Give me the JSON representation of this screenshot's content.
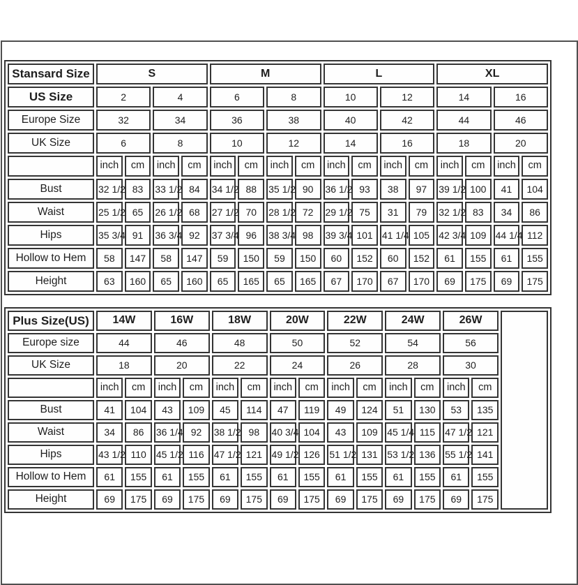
{
  "colors": {
    "page_background": "#ffffff",
    "outer_border": "#4f4f4f",
    "table_border": "#343434",
    "text": "#1e1e1e"
  },
  "chart_data": [
    {
      "type": "table",
      "title_label": "Stansard Size",
      "size_groups": [
        "S",
        "M",
        "L",
        "XL"
      ],
      "layout": {
        "group_colspan": 4,
        "header_colspan": 2,
        "trailing_empty_col": false,
        "legend_position": "none",
        "grid": "on"
      },
      "header_rows": [
        {
          "label": "US Size",
          "bold": true,
          "values": [
            "2",
            "4",
            "6",
            "8",
            "10",
            "12",
            "14",
            "16"
          ]
        },
        {
          "label": "Europe Size",
          "bold": false,
          "values": [
            "32",
            "34",
            "36",
            "38",
            "40",
            "42",
            "44",
            "46"
          ]
        },
        {
          "label": "UK Size",
          "bold": false,
          "values": [
            "6",
            "8",
            "10",
            "12",
            "14",
            "16",
            "18",
            "20"
          ]
        }
      ],
      "unit_labels": [
        "inch",
        "cm"
      ],
      "measurement_rows": [
        {
          "label": "Bust",
          "values": [
            "32 1/2",
            "83",
            "33 1/2",
            "84",
            "34 1/2",
            "88",
            "35 1/2",
            "90",
            "36 1/2",
            "93",
            "38",
            "97",
            "39 1/2",
            "100",
            "41",
            "104"
          ]
        },
        {
          "label": "Waist",
          "values": [
            "25 1/2",
            "65",
            "26 1/2",
            "68",
            "27 1/2",
            "70",
            "28 1/2",
            "72",
            "29 1/2",
            "75",
            "31",
            "79",
            "32 1/2",
            "83",
            "34",
            "86"
          ]
        },
        {
          "label": "Hips",
          "values": [
            "35 3/4",
            "91",
            "36 3/4",
            "92",
            "37 3/4",
            "96",
            "38 3/4",
            "98",
            "39 3/4",
            "101",
            "41 1/4",
            "105",
            "42 3/4",
            "109",
            "44 1/4",
            "112"
          ]
        },
        {
          "label": "Hollow to Hem",
          "values": [
            "58",
            "147",
            "58",
            "147",
            "59",
            "150",
            "59",
            "150",
            "60",
            "152",
            "60",
            "152",
            "61",
            "155",
            "61",
            "155"
          ]
        },
        {
          "label": "Height",
          "values": [
            "63",
            "160",
            "65",
            "160",
            "65",
            "165",
            "65",
            "165",
            "67",
            "170",
            "67",
            "170",
            "69",
            "175",
            "69",
            "175"
          ]
        }
      ]
    },
    {
      "type": "table",
      "title_label": "Plus Size(US)",
      "size_groups": [
        "14W",
        "16W",
        "18W",
        "20W",
        "22W",
        "24W",
        "26W"
      ],
      "layout": {
        "group_colspan": 2,
        "header_colspan": 2,
        "trailing_empty_col": true,
        "legend_position": "none",
        "grid": "on"
      },
      "header_rows": [
        {
          "label": "Europe size",
          "bold": false,
          "values": [
            "44",
            "46",
            "48",
            "50",
            "52",
            "54",
            "56"
          ]
        },
        {
          "label": "UK Size",
          "bold": false,
          "values": [
            "18",
            "20",
            "22",
            "24",
            "26",
            "28",
            "30"
          ]
        }
      ],
      "unit_labels": [
        "inch",
        "cm"
      ],
      "measurement_rows": [
        {
          "label": "Bust",
          "values": [
            "41",
            "104",
            "43",
            "109",
            "45",
            "114",
            "47",
            "119",
            "49",
            "124",
            "51",
            "130",
            "53",
            "135"
          ]
        },
        {
          "label": "Waist",
          "values": [
            "34",
            "86",
            "36 1/4",
            "92",
            "38 1/2",
            "98",
            "40 3/4",
            "104",
            "43",
            "109",
            "45 1/4",
            "115",
            "47 1/2",
            "121"
          ]
        },
        {
          "label": "Hips",
          "values": [
            "43 1/2",
            "110",
            "45 1/2",
            "116",
            "47 1/2",
            "121",
            "49 1/2",
            "126",
            "51 1/2",
            "131",
            "53 1/2",
            "136",
            "55 1/2",
            "141"
          ]
        },
        {
          "label": "Hollow to Hem",
          "values": [
            "61",
            "155",
            "61",
            "155",
            "61",
            "155",
            "61",
            "155",
            "61",
            "155",
            "61",
            "155",
            "61",
            "155"
          ]
        },
        {
          "label": "Height",
          "values": [
            "69",
            "175",
            "69",
            "175",
            "69",
            "175",
            "69",
            "175",
            "69",
            "175",
            "69",
            "175",
            "69",
            "175"
          ]
        }
      ]
    }
  ]
}
